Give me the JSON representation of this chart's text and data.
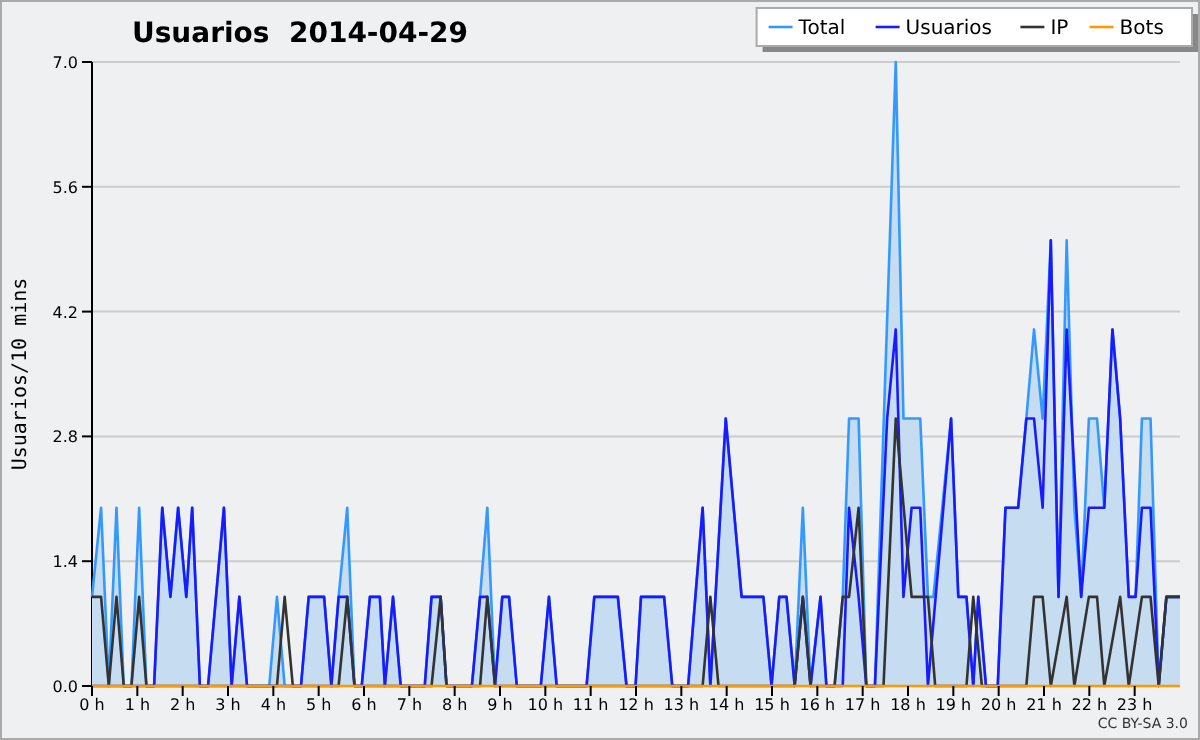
{
  "chart_data": {
    "type": "line",
    "title": "Usuarios  2014-04-29",
    "ylabel": "Usuarios/10 mins",
    "annotations": [
      "CC BY-SA 3.0"
    ],
    "xlim": [
      0,
      24
    ],
    "ylim": [
      0,
      7
    ],
    "xticks": [
      {
        "value": 0,
        "label": "0 h"
      },
      {
        "value": 1,
        "label": "1 h"
      },
      {
        "value": 2,
        "label": "2 h"
      },
      {
        "value": 3,
        "label": "3 h"
      },
      {
        "value": 4,
        "label": "4 h"
      },
      {
        "value": 5,
        "label": "5 h"
      },
      {
        "value": 6,
        "label": "6 h"
      },
      {
        "value": 7,
        "label": "7 h"
      },
      {
        "value": 8,
        "label": "8 h"
      },
      {
        "value": 9,
        "label": "9 h"
      },
      {
        "value": 10,
        "label": "10 h"
      },
      {
        "value": 11,
        "label": "11 h"
      },
      {
        "value": 12,
        "label": "12 h"
      },
      {
        "value": 13,
        "label": "13 h"
      },
      {
        "value": 14,
        "label": "14 h"
      },
      {
        "value": 15,
        "label": "15 h"
      },
      {
        "value": 16,
        "label": "16 h"
      },
      {
        "value": 17,
        "label": "17 h"
      },
      {
        "value": 18,
        "label": "18 h"
      },
      {
        "value": 19,
        "label": "19 h"
      },
      {
        "value": 20,
        "label": "20 h"
      },
      {
        "value": 21,
        "label": "21 h"
      },
      {
        "value": 22,
        "label": "22 h"
      },
      {
        "value": 23,
        "label": "23 h"
      }
    ],
    "yticks": [
      {
        "value": 0,
        "label": "0.0"
      },
      {
        "value": 1.4,
        "label": "1.4"
      },
      {
        "value": 2.8,
        "label": "2.8"
      },
      {
        "value": 4.2,
        "label": "4.2"
      },
      {
        "value": 5.6,
        "label": "5.6"
      },
      {
        "value": 7,
        "label": "7.0"
      }
    ],
    "grid": "y",
    "legend": "top right",
    "marker": "none",
    "series": [
      {
        "name": "Total",
        "type": "area",
        "color": "#3399ff",
        "x": [
          0,
          0.2,
          0.37,
          0.54,
          0.7,
          0.87,
          1.04,
          1.2,
          1.37,
          1.55,
          1.73,
          1.9,
          2.08,
          2.21,
          2.38,
          2.56,
          2.91,
          3.08,
          3.25,
          3.42,
          3.91,
          4.08,
          4.25,
          4.61,
          4.78,
          5.12,
          5.28,
          5.44,
          5.63,
          5.79,
          5.95,
          6.13,
          6.35,
          6.46,
          6.64,
          6.81,
          7.34,
          7.49,
          7.69,
          7.82,
          8.38,
          8.56,
          8.72,
          8.89,
          9.05,
          9.2,
          9.37,
          9.9,
          10.08,
          10.25,
          10.91,
          11.08,
          11.6,
          11.79,
          11.99,
          12.11,
          12.62,
          12.8,
          13.15,
          13.47,
          13.64,
          13.98,
          14.33,
          14.81,
          14.99,
          15.16,
          15.32,
          15.5,
          15.68,
          15.85,
          16.07,
          16.2,
          16.38,
          16.56,
          16.7,
          16.91,
          17.08,
          17.27,
          17.73,
          17.9,
          18.27,
          18.44,
          18.56,
          18.95,
          19.11,
          19.29,
          19.44,
          19.55,
          19.72,
          19.98,
          20.15,
          20.43,
          20.61,
          20.78,
          20.97,
          21.15,
          21.32,
          21.5,
          21.67,
          21.82,
          21.99,
          22.17,
          22.33,
          22.51,
          22.68,
          22.87,
          23.02,
          23.16,
          23.35,
          23.53,
          23.7,
          24
        ],
        "values": [
          1,
          2,
          0,
          2,
          0,
          0,
          2,
          0,
          0,
          2,
          1,
          2,
          1,
          2,
          0,
          0,
          2,
          0,
          1,
          0,
          0,
          1,
          0,
          0,
          1,
          1,
          0,
          1,
          2,
          0,
          0,
          1,
          1,
          0,
          1,
          0,
          0,
          1,
          1,
          0,
          0,
          1,
          2,
          0,
          1,
          1,
          0,
          0,
          1,
          0,
          0,
          1,
          1,
          0,
          0,
          1,
          1,
          0,
          0,
          2,
          0,
          3,
          1,
          1,
          0,
          1,
          1,
          0,
          2,
          0,
          1,
          0,
          0,
          1,
          3,
          3,
          0,
          0,
          7,
          3,
          3,
          1,
          1,
          3,
          1,
          1,
          0,
          1,
          0,
          0,
          2,
          2,
          3,
          4,
          3,
          5,
          1,
          5,
          2,
          1,
          3,
          3,
          2,
          4,
          3,
          1,
          1,
          3,
          3,
          0,
          1,
          1
        ]
      },
      {
        "name": "Usuarios",
        "color": "#1a1aff",
        "x": [
          0,
          1.37,
          1.55,
          1.73,
          1.9,
          2.08,
          2.21,
          2.38,
          2.56,
          2.91,
          3.08,
          3.25,
          3.42,
          4.61,
          4.78,
          5.12,
          5.28,
          5.44,
          5.63,
          5.79,
          5.95,
          6.13,
          6.35,
          6.46,
          6.64,
          6.81,
          7.34,
          7.49,
          7.69,
          7.82,
          8.38,
          8.56,
          8.72,
          8.89,
          9.05,
          9.2,
          9.37,
          9.9,
          10.08,
          10.25,
          10.91,
          11.08,
          11.6,
          11.79,
          11.99,
          12.11,
          12.62,
          12.8,
          13.15,
          13.47,
          13.64,
          13.98,
          14.33,
          14.81,
          14.99,
          15.16,
          15.32,
          15.5,
          15.68,
          15.85,
          16.07,
          16.2,
          16.56,
          16.7,
          16.91,
          17.08,
          17.27,
          17.54,
          17.73,
          17.9,
          18.08,
          18.27,
          18.44,
          18.95,
          19.11,
          19.29,
          19.44,
          19.55,
          19.72,
          19.98,
          20.15,
          20.43,
          20.61,
          20.78,
          20.97,
          21.15,
          21.32,
          21.5,
          21.82,
          21.99,
          22.33,
          22.51,
          22.68,
          22.87,
          23.02,
          23.16,
          23.35,
          23.53,
          23.7,
          24
        ],
        "values": [
          0,
          0,
          2,
          1,
          2,
          1,
          2,
          0,
          0,
          2,
          0,
          1,
          0,
          0,
          1,
          1,
          0,
          1,
          1,
          0,
          0,
          1,
          1,
          0,
          1,
          0,
          0,
          1,
          1,
          0,
          0,
          1,
          1,
          0,
          1,
          1,
          0,
          0,
          1,
          0,
          0,
          1,
          1,
          0,
          0,
          1,
          1,
          0,
          0,
          2,
          0,
          3,
          1,
          1,
          0,
          1,
          1,
          0,
          1,
          0,
          1,
          0,
          0,
          2,
          1,
          0,
          0,
          3,
          4,
          1,
          2,
          2,
          0,
          3,
          1,
          1,
          0,
          1,
          0,
          0,
          2,
          2,
          3,
          3,
          2,
          5,
          1,
          4,
          1,
          2,
          2,
          4,
          3,
          1,
          1,
          2,
          2,
          0,
          1,
          1
        ]
      },
      {
        "name": "IP",
        "color": "#333333",
        "x": [
          0,
          0.2,
          0.37,
          0.54,
          0.7,
          0.87,
          1.04,
          1.2,
          4.08,
          4.25,
          4.43,
          5.44,
          5.63,
          5.79,
          7.49,
          7.69,
          7.82,
          8.56,
          8.72,
          8.89,
          13.47,
          13.64,
          13.82,
          15.5,
          15.68,
          15.85,
          16.38,
          16.56,
          16.7,
          16.91,
          17.08,
          17.46,
          17.73,
          18.08,
          18.44,
          18.6,
          19.29,
          19.44,
          19.63,
          20.61,
          20.78,
          20.97,
          21.15,
          21.5,
          21.67,
          21.99,
          22.17,
          22.33,
          22.68,
          22.87,
          23.16,
          23.35,
          23.53,
          23.7,
          24
        ],
        "values": [
          1,
          1,
          0,
          1,
          0,
          0,
          1,
          0,
          0,
          1,
          0,
          0,
          1,
          0,
          0,
          1,
          0,
          0,
          1,
          0,
          0,
          1,
          0,
          0,
          1,
          0,
          0,
          1,
          1,
          2,
          0,
          0,
          3,
          1,
          1,
          0,
          0,
          1,
          0,
          0,
          1,
          1,
          0,
          1,
          0,
          1,
          1,
          0,
          1,
          0,
          1,
          1,
          0,
          1,
          1
        ]
      },
      {
        "name": "Bots",
        "color": "#ff9900",
        "x": [
          0,
          24
        ],
        "values": [
          0,
          0
        ]
      }
    ]
  }
}
